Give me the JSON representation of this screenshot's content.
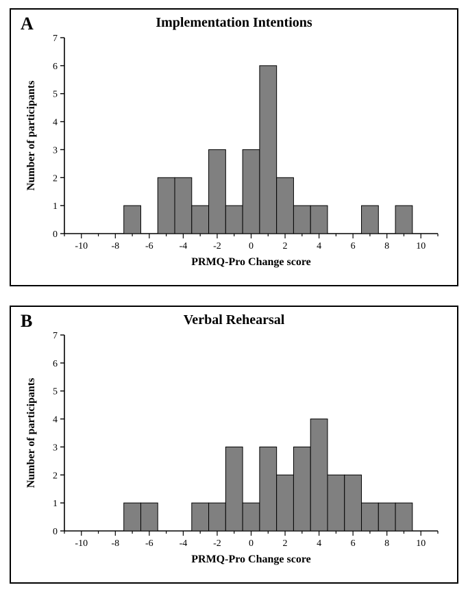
{
  "figure": {
    "panels": [
      {
        "id": "A",
        "label": "A",
        "title": "Implementation Intentions",
        "xlabel": "PRMQ-Pro Change score",
        "ylabel": "Number of participants",
        "type": "histogram",
        "xlim": [
          -11,
          11
        ],
        "ylim": [
          0,
          7
        ],
        "ytick_step": 1,
        "xtick_step": 2,
        "xtick_start": -10,
        "xtick_end": 10,
        "bar_width": 1,
        "bar_color": "#808080",
        "bar_border_color": "#000000",
        "axis_color": "#000000",
        "background_color": "#ffffff",
        "label_fontsize": 16,
        "tick_fontsize": 14,
        "title_fontsize": 20,
        "panel_label_fontsize": 26,
        "bars": [
          {
            "x": -7,
            "y": 1
          },
          {
            "x": -5,
            "y": 2
          },
          {
            "x": -4,
            "y": 2
          },
          {
            "x": -3,
            "y": 1
          },
          {
            "x": -2,
            "y": 3
          },
          {
            "x": -1,
            "y": 1
          },
          {
            "x": 0,
            "y": 3
          },
          {
            "x": 1,
            "y": 6
          },
          {
            "x": 2,
            "y": 2
          },
          {
            "x": 3,
            "y": 1
          },
          {
            "x": 4,
            "y": 1
          },
          {
            "x": 7,
            "y": 1
          },
          {
            "x": 9,
            "y": 1
          }
        ]
      },
      {
        "id": "B",
        "label": "B",
        "title": "Verbal Rehearsal",
        "xlabel": "PRMQ-Pro Change score",
        "ylabel": "Number of participants",
        "type": "histogram",
        "xlim": [
          -11,
          11
        ],
        "ylim": [
          0,
          7
        ],
        "ytick_step": 1,
        "xtick_step": 2,
        "xtick_start": -10,
        "xtick_end": 10,
        "bar_width": 1,
        "bar_color": "#808080",
        "bar_border_color": "#000000",
        "axis_color": "#000000",
        "background_color": "#ffffff",
        "label_fontsize": 16,
        "tick_fontsize": 14,
        "title_fontsize": 20,
        "panel_label_fontsize": 26,
        "bars": [
          {
            "x": -7,
            "y": 1
          },
          {
            "x": -6,
            "y": 1
          },
          {
            "x": -3,
            "y": 1
          },
          {
            "x": -2,
            "y": 1
          },
          {
            "x": -1,
            "y": 3
          },
          {
            "x": 0,
            "y": 1
          },
          {
            "x": 1,
            "y": 3
          },
          {
            "x": 2,
            "y": 2
          },
          {
            "x": 3,
            "y": 3
          },
          {
            "x": 4,
            "y": 4
          },
          {
            "x": 5,
            "y": 2
          },
          {
            "x": 6,
            "y": 2
          },
          {
            "x": 7,
            "y": 1
          },
          {
            "x": 8,
            "y": 1
          },
          {
            "x": 9,
            "y": 1
          }
        ]
      }
    ]
  }
}
